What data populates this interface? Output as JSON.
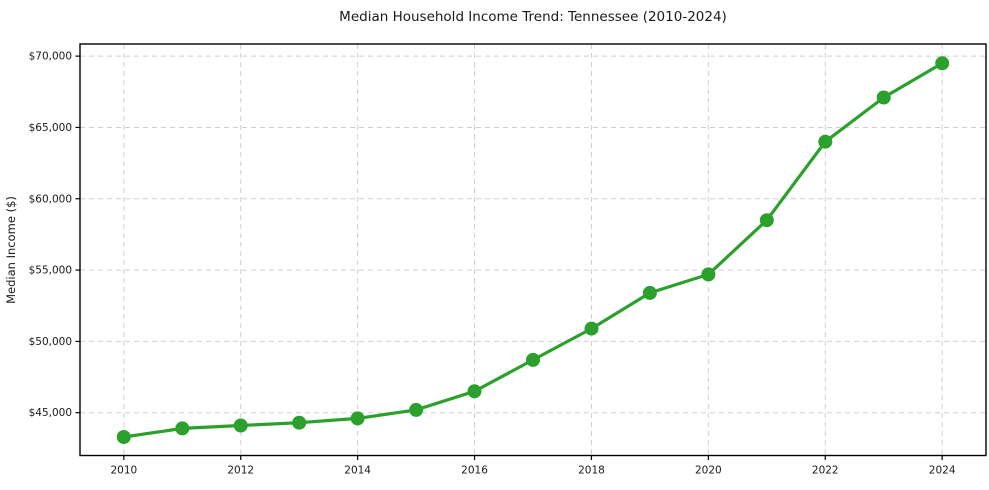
{
  "chart_data": {
    "type": "line",
    "title": "Median Household Income Trend: Tennessee (2010-2024)",
    "xlabel": "",
    "ylabel": "Median Income ($)",
    "x": [
      2010,
      2011,
      2012,
      2013,
      2014,
      2015,
      2016,
      2017,
      2018,
      2019,
      2020,
      2021,
      2022,
      2023,
      2024
    ],
    "values": [
      43300,
      43900,
      44100,
      44300,
      44600,
      45200,
      46500,
      48700,
      50900,
      53400,
      54700,
      58500,
      64000,
      67100,
      69500
    ],
    "xticks": [
      2010,
      2012,
      2014,
      2016,
      2018,
      2020,
      2022,
      2024
    ],
    "yticks": [
      45000,
      50000,
      55000,
      60000,
      65000,
      70000
    ],
    "xlim": [
      2009.25,
      2024.75
    ],
    "ylim": [
      42000,
      70850
    ],
    "grid": true,
    "legend_position": "none",
    "y_tick_prefix": "$",
    "line_color": "#2ca02c",
    "marker_color": "#2ca02c",
    "grid_color": "#cfcfcf",
    "axis_color": "#000000",
    "background": "#ffffff"
  }
}
